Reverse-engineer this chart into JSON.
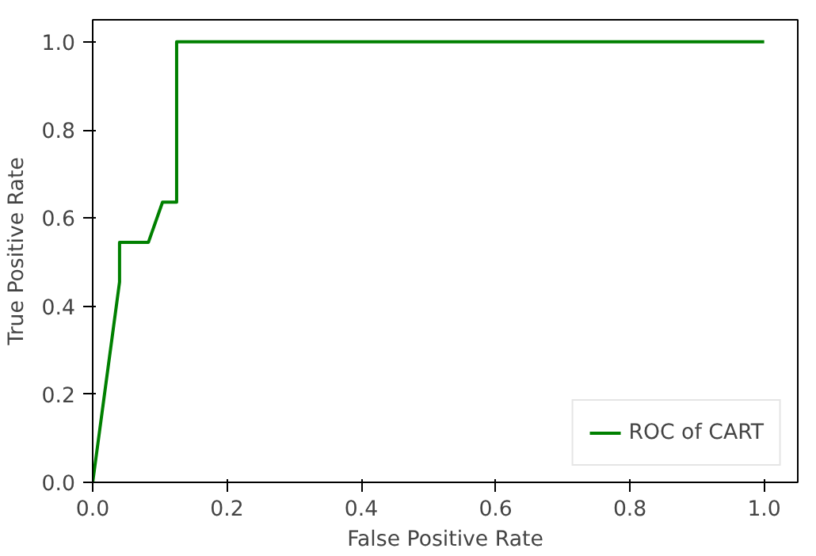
{
  "chart_data": {
    "type": "line",
    "xlabel": "False Positive Rate",
    "ylabel": "True Positive Rate",
    "x": [
      0,
      0.04,
      0.04,
      0.083,
      0.104,
      0.125,
      0.125,
      1
    ],
    "series": [
      {
        "name": "ROC of CART",
        "color": "#008000",
        "values": [
          0,
          0.455,
          0.545,
          0.545,
          0.636,
          0.636,
          1,
          1
        ]
      }
    ],
    "xlim": [
      0,
      1.05
    ],
    "ylim": [
      0,
      1.05
    ],
    "xticks": [
      {
        "value": 0,
        "label": "0.0"
      },
      {
        "value": 0.2,
        "label": "0.2"
      },
      {
        "value": 0.4,
        "label": "0.4"
      },
      {
        "value": 0.6,
        "label": "0.6"
      },
      {
        "value": 0.8,
        "label": "0.8"
      },
      {
        "value": 1,
        "label": "1.0"
      }
    ],
    "yticks": [
      {
        "value": 0,
        "label": "0.0"
      },
      {
        "value": 0.2,
        "label": "0.2"
      },
      {
        "value": 0.4,
        "label": "0.4"
      },
      {
        "value": 0.6,
        "label": "0.6"
      },
      {
        "value": 0.8,
        "label": "0.8"
      },
      {
        "value": 1,
        "label": "1.0"
      }
    ],
    "legend": "bottom right",
    "grid": false,
    "line_style": "solid",
    "marker": "none"
  }
}
